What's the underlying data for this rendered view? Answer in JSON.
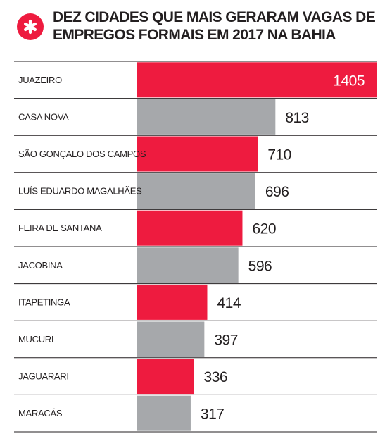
{
  "header": {
    "badge_icon": "asterisk-icon",
    "title": "DEZ CIDADES QUE MAIS GERARAM VAGAS DE EMPREGOS FORMAIS EM 2017 NA BAHIA"
  },
  "colors": {
    "accent_red": "#ee1b3f",
    "bar_gray": "#a6a8ab",
    "divider": "#231f20",
    "text": "#231f20"
  },
  "chart_data": {
    "type": "bar",
    "orientation": "horizontal",
    "title": "DEZ CIDADES QUE MAIS GERARAM VAGAS DE EMPREGOS FORMAIS EM 2017 NA BAHIA",
    "categories": [
      "JUAZEIRO",
      "CASA NOVA",
      "SÃO GONÇALO DOS CAMPOS",
      "LUÍS EDUARDO MAGALHÃES",
      "FEIRA DE SANTANA",
      "JACOBINA",
      "ITAPETINGA",
      "MUCURI",
      "JAGUARARI",
      "MARACÁS"
    ],
    "values": [
      1405,
      813,
      710,
      696,
      620,
      596,
      414,
      397,
      336,
      317
    ],
    "bar_colors": [
      "#ee1b3f",
      "#a6a8ab",
      "#ee1b3f",
      "#a6a8ab",
      "#ee1b3f",
      "#a6a8ab",
      "#ee1b3f",
      "#a6a8ab",
      "#ee1b3f",
      "#a6a8ab"
    ],
    "xlabel": "",
    "ylabel": "",
    "xlim": [
      0,
      1405
    ],
    "grid": false,
    "legend": "none"
  }
}
